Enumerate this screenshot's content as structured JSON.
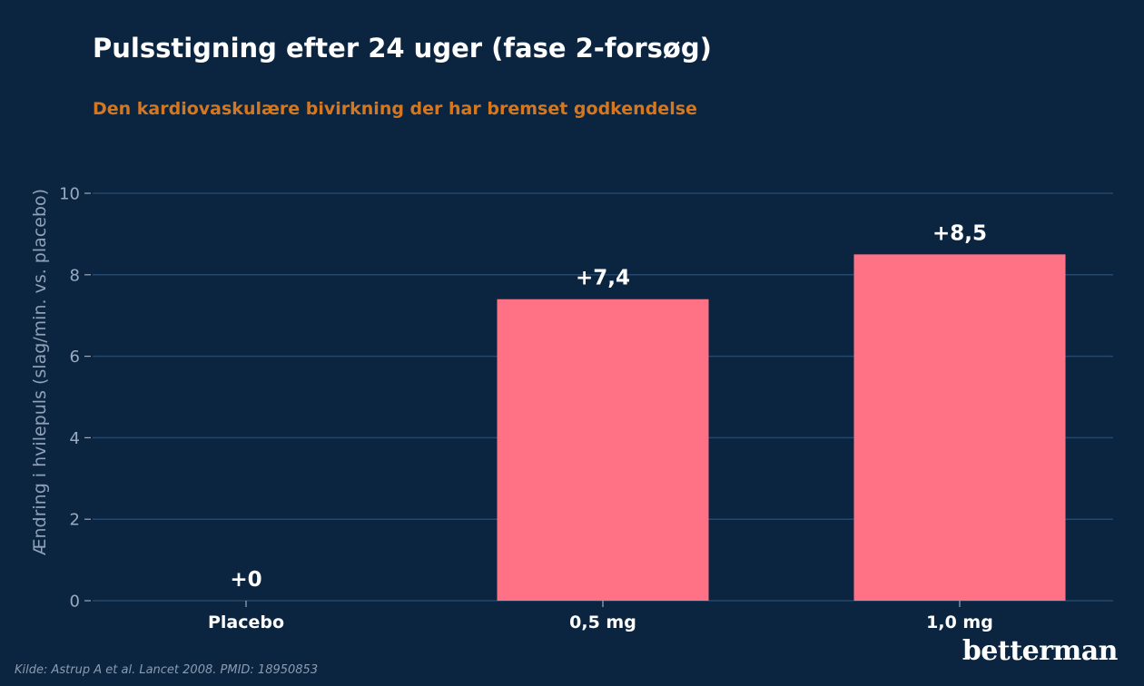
{
  "title": "Pulsstigning efter 24 uger (fase 2-forsøg)",
  "subtitle": "Den kardiovaskulære bivirkning der har bremset godkendelse",
  "source": "Kilde: Astrup A et al. Lancet 2008. PMID: 18950853",
  "logo": "betterman",
  "colors": {
    "background": "#0b2541",
    "bar": "#ff7286",
    "subtitle": "#d5771f",
    "grid": "#24476b",
    "axis_text": "#9aaac0",
    "label_text": "#ffffff"
  },
  "chart_data": {
    "type": "bar",
    "categories": [
      "Placebo",
      "0,5 mg",
      "1,0 mg"
    ],
    "values": [
      0,
      7.4,
      8.5
    ],
    "value_labels": [
      "+0",
      "+7,4",
      "+8,5"
    ],
    "ylabel": "Ændring i hvilepuls (slag/min. vs. placebo)",
    "xlabel": "",
    "ylim": [
      0,
      10
    ],
    "yticks": [
      0,
      2,
      4,
      6,
      8,
      10
    ],
    "ytick_labels": [
      "0",
      "2",
      "4",
      "6",
      "8",
      "10"
    ],
    "grid": true,
    "legend": "none"
  }
}
